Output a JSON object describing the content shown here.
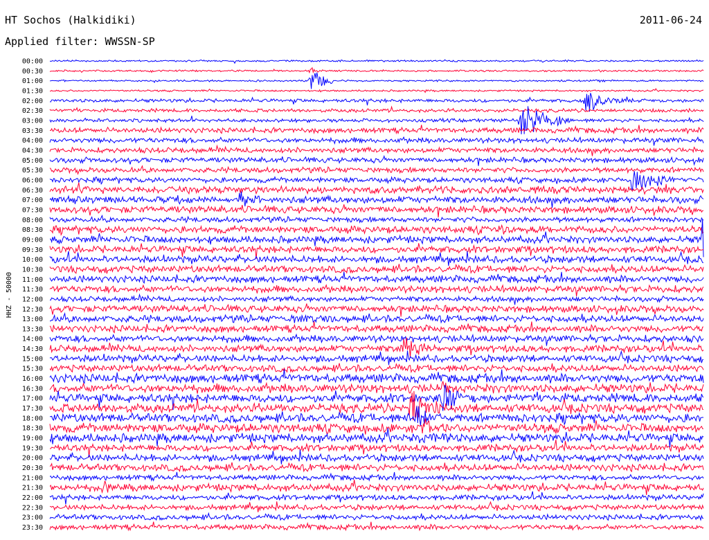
{
  "header": {
    "station": "HT Sochos (Halkidiki)",
    "date": "2011-06-24",
    "filter": "Applied filter: WWSSN-SP"
  },
  "chart_data": {
    "type": "line",
    "title": "HT Sochos (Halkidiki)",
    "ylabel": "HHZ - 50000",
    "colors": [
      "#0000ff",
      "#ff0033"
    ],
    "ticks": [
      "00:00",
      "00:30",
      "01:00",
      "01:30",
      "02:00",
      "02:30",
      "03:00",
      "03:30",
      "04:00",
      "04:30",
      "05:00",
      "05:30",
      "06:00",
      "06:30",
      "07:00",
      "07:30",
      "08:00",
      "08:30",
      "09:00",
      "09:30",
      "10:00",
      "10:30",
      "11:00",
      "11:30",
      "12:00",
      "12:30",
      "13:00",
      "13:30",
      "14:00",
      "14:30",
      "15:00",
      "15:30",
      "16:00",
      "16:30",
      "17:00",
      "17:30",
      "18:00",
      "18:30",
      "19:00",
      "19:30",
      "20:00",
      "20:30",
      "21:00",
      "21:30",
      "22:00",
      "22:30",
      "23:00",
      "23:30"
    ],
    "noise_level": [
      1,
      1,
      1,
      1,
      2,
      2,
      2,
      3,
      3,
      3,
      3,
      3,
      3,
      4,
      4,
      4,
      3,
      4,
      4,
      4,
      4,
      4,
      4,
      4,
      3,
      4,
      4,
      4,
      4,
      4,
      4,
      4,
      5,
      5,
      5,
      5,
      5,
      5,
      5,
      4,
      4,
      4,
      3,
      4,
      3,
      3,
      3,
      3
    ],
    "events": [
      {
        "row": 1,
        "x": 0.4,
        "amp": 20,
        "dur": 0.01
      },
      {
        "row": 2,
        "x": 0.4,
        "amp": 35,
        "dur": 0.03
      },
      {
        "row": 4,
        "x": 0.82,
        "amp": 25,
        "dur": 0.06
      },
      {
        "row": 6,
        "x": 0.72,
        "amp": 35,
        "dur": 0.08
      },
      {
        "row": 12,
        "x": 0.89,
        "amp": 30,
        "dur": 0.07
      },
      {
        "row": 14,
        "x": 0.29,
        "amp": 20,
        "dur": 0.03
      },
      {
        "row": 17,
        "x": 0.69,
        "amp": 12,
        "dur": 0.02
      },
      {
        "row": 18,
        "x": 1.0,
        "amp": 120,
        "dur": 0.005
      },
      {
        "row": 26,
        "x": 0.37,
        "amp": 10,
        "dur": 0.06
      },
      {
        "row": 29,
        "x": 0.54,
        "amp": 25,
        "dur": 0.06
      },
      {
        "row": 33,
        "x": 0.6,
        "amp": 15,
        "dur": 0.03
      },
      {
        "row": 34,
        "x": 0.6,
        "amp": 28,
        "dur": 0.06
      },
      {
        "row": 35,
        "x": 0.55,
        "amp": 35,
        "dur": 0.08
      },
      {
        "row": 36,
        "x": 0.56,
        "amp": 25,
        "dur": 0.05
      },
      {
        "row": 37,
        "x": 0.57,
        "amp": 20,
        "dur": 0.05
      },
      {
        "row": 38,
        "x": 0.57,
        "amp": 10,
        "dur": 0.04
      },
      {
        "row": 43,
        "x": 0.08,
        "amp": 18,
        "dur": 0.03
      }
    ]
  }
}
